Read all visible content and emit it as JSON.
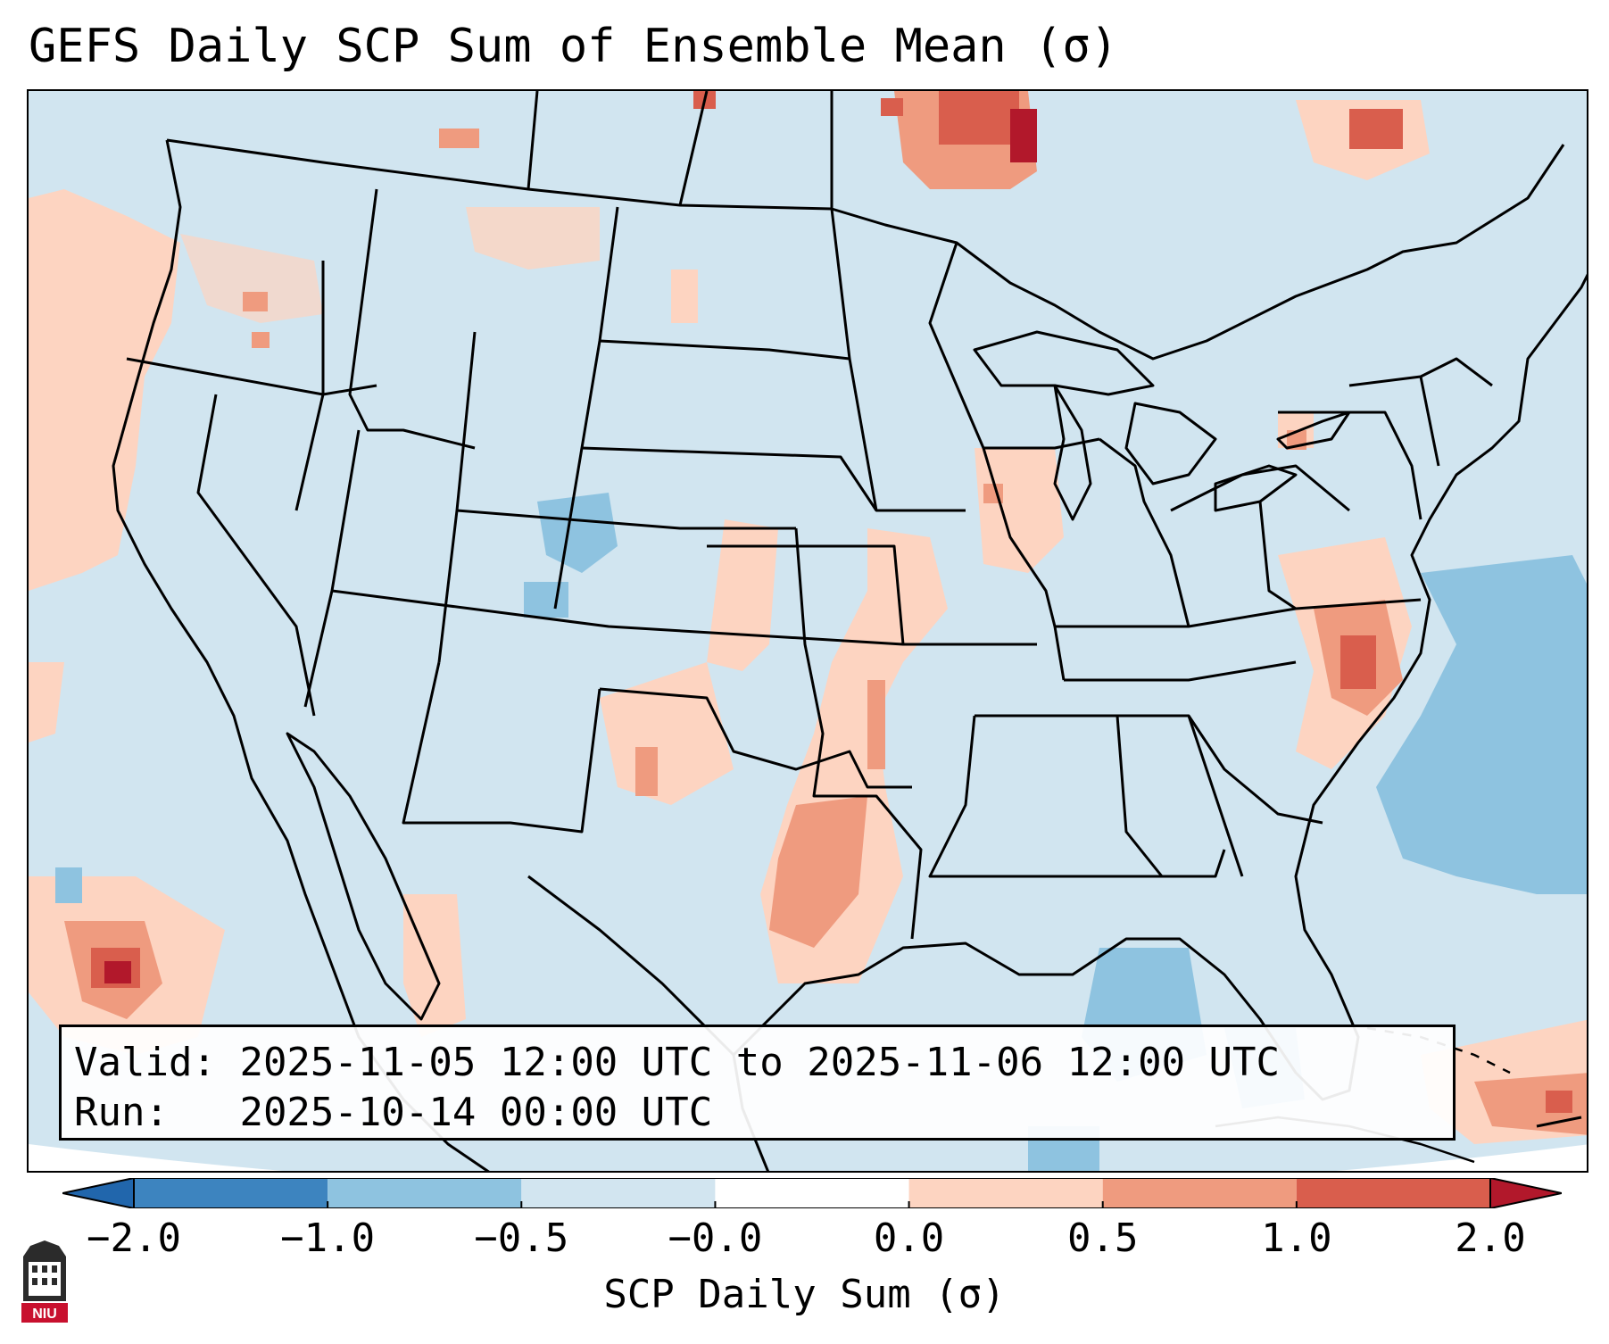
{
  "title": "GEFS Daily SCP Sum of Ensemble Mean (σ)",
  "info": {
    "valid_label": "Valid:",
    "valid_value": "2025-11-05 12:00 UTC to 2025-11-06 12:00 UTC",
    "run_label": "Run:",
    "run_value": "2025-10-14 00:00 UTC"
  },
  "colorbar": {
    "label": "SCP Daily Sum (σ)",
    "ticks": [
      "−2.0",
      "−1.0",
      "−0.5",
      "−0.0",
      "0.0",
      "0.5",
      "1.0",
      "2.0"
    ],
    "colors": [
      "#3d84bf",
      "#8ec3e0",
      "#d2e5f0",
      "#fdd4c1",
      "#ef9b7f",
      "#d95e4d"
    ],
    "extend_low_color": "#2166ac",
    "extend_high_color": "#b2182b"
  },
  "map": {
    "background_color": "#d1e5f0",
    "boundary_color": "#000000"
  },
  "logo": {
    "text": "NIU",
    "color": "#c8102e"
  }
}
